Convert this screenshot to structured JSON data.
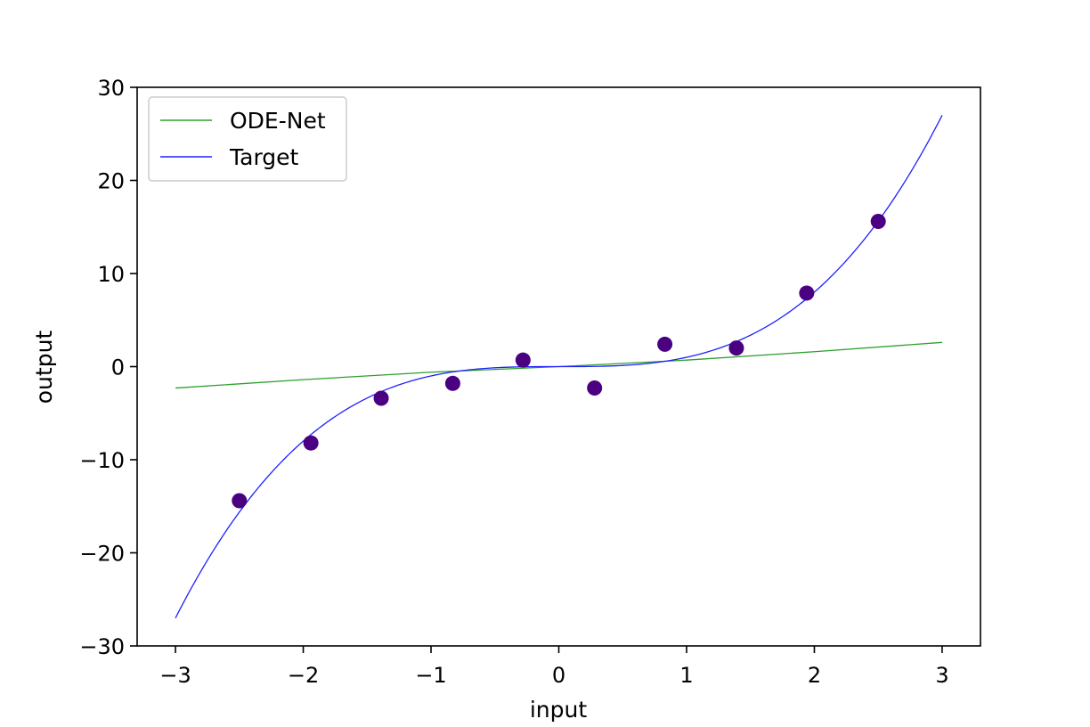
{
  "chart_data": {
    "type": "line",
    "title": "",
    "xlabel": "input",
    "ylabel": "output",
    "xlim": [
      -3.3,
      3.3
    ],
    "ylim": [
      -30,
      30
    ],
    "x_ticks": [
      -3,
      -2,
      -1,
      0,
      1,
      2,
      3
    ],
    "x_tick_labels": [
      "−3",
      "−2",
      "−1",
      "0",
      "1",
      "2",
      "3"
    ],
    "y_ticks": [
      -30,
      -20,
      -10,
      0,
      10,
      20,
      30
    ],
    "y_tick_labels": [
      "−30",
      "−20",
      "−10",
      "0",
      "10",
      "20",
      "30"
    ],
    "grid": false,
    "legend_position": "upper-left",
    "series": [
      {
        "name": "ODE-Net",
        "kind": "line",
        "color": "#2ca02c",
        "x": [
          -3.0,
          -2.0,
          -1.0,
          0.0,
          1.0,
          2.0,
          3.0
        ],
        "y": [
          -2.3,
          -1.4,
          -0.6,
          0.0,
          0.7,
          1.6,
          2.6
        ]
      },
      {
        "name": "Target",
        "kind": "line",
        "function": "x^3",
        "color": "#2020ff",
        "x_range": [
          -3.0,
          3.0
        ]
      },
      {
        "name": "",
        "kind": "scatter",
        "color": "#4b0082",
        "x": [
          -2.5,
          -1.94,
          -1.39,
          -0.83,
          -0.28,
          0.28,
          0.83,
          1.39,
          1.94,
          2.5
        ],
        "y": [
          -14.4,
          -8.2,
          -3.4,
          -1.8,
          0.7,
          -2.3,
          2.4,
          2.0,
          7.9,
          15.6
        ]
      }
    ]
  }
}
